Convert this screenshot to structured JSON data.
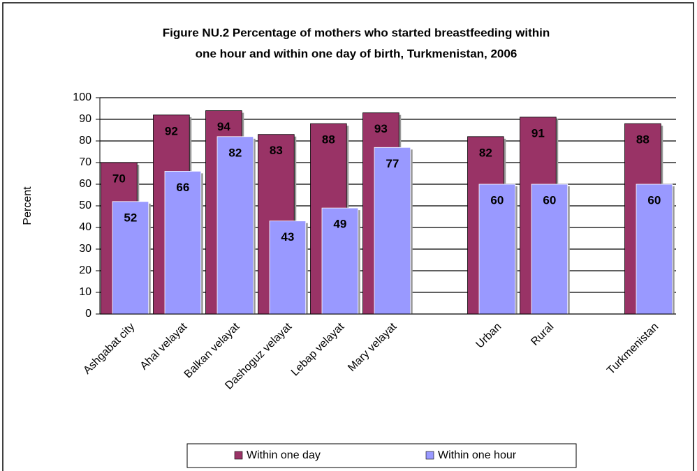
{
  "chart_data": {
    "type": "bar",
    "title": [
      "Figure NU.2 Percentage of mothers who started breastfeeding within",
      "one hour and within one day of birth, Turkmenistan, 2006"
    ],
    "ylabel": "Percent",
    "categories": [
      "Ashgabat city",
      "Ahal velayat",
      "Balkan velayat",
      "Dashoguz velayat",
      "Lebap velayat",
      "Mary velayat",
      null,
      "Urban",
      "Rural",
      null,
      "Turkmenistan"
    ],
    "series": [
      {
        "name": "Within one day",
        "color": "#993366",
        "values": [
          70,
          92,
          94,
          83,
          88,
          93,
          null,
          82,
          91,
          null,
          88
        ]
      },
      {
        "name": "Within one hour",
        "color": "#9999ff",
        "values": [
          52,
          66,
          82,
          43,
          49,
          77,
          null,
          60,
          60,
          null,
          60
        ]
      }
    ],
    "ylim": [
      0,
      100
    ],
    "yticks": [
      0,
      10,
      20,
      30,
      40,
      50,
      60,
      70,
      80,
      90,
      100
    ],
    "grid": true,
    "legend": "bottom"
  }
}
